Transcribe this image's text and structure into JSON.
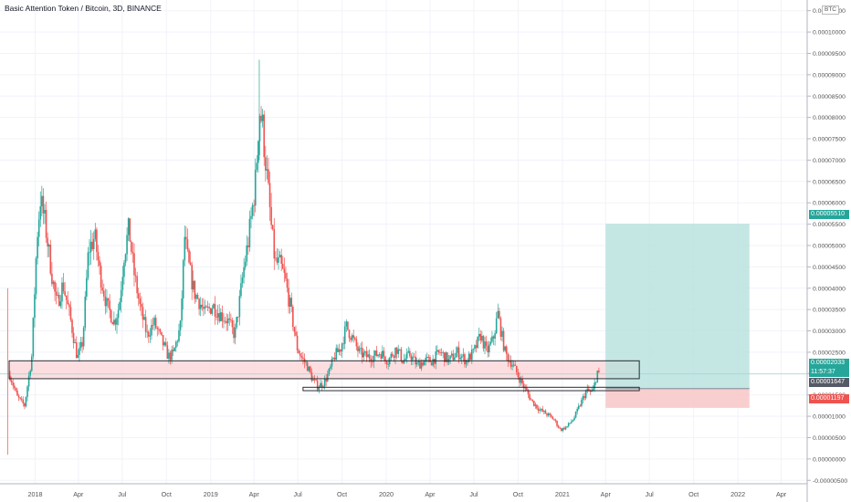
{
  "header": {
    "title": "Basic Attention Token / Bitcoin, 3D, BINANCE"
  },
  "price_axis": {
    "currency": "BTC"
  },
  "badges": {
    "target": "0.00005510",
    "current": "0.00002033",
    "countdown": "11:57:37",
    "entry": "0.00001647",
    "stop": "0.00001197"
  },
  "colors": {
    "up": "#26a69a",
    "down": "#ef5350",
    "target_zone": "#b2dfdb",
    "stop_zone": "#f8c5c5",
    "support_zone": "#fbd6d8"
  },
  "chart_data": {
    "type": "candlestick",
    "title": "Basic Attention Token / Bitcoin, 3D, BINANCE",
    "x_ticks": [
      "2018",
      "Apr",
      "Jul",
      "Oct",
      "2019",
      "Apr",
      "Jul",
      "Oct",
      "2020",
      "Apr",
      "Jul",
      "Oct",
      "2021",
      "Apr",
      "Jul",
      "Oct",
      "2022",
      "Apr"
    ],
    "y_ticks": [
      "-0.00000500",
      "0.00000000",
      "0.00000500",
      "0.00001000",
      "0.00001500",
      "0.00002000",
      "0.00002500",
      "0.00003000",
      "0.00003500",
      "0.00004000",
      "0.00004500",
      "0.00005000",
      "0.00005500",
      "0.00006000",
      "0.00006500",
      "0.00007000",
      "0.00007500",
      "0.00008000",
      "0.00008500",
      "0.00009000",
      "0.00009500",
      "0.00010000",
      "0.00010500"
    ],
    "ylim": [
      -5.8e-06,
      0.0001075
    ],
    "date_range": [
      "2017-10-20",
      "2022-05-25"
    ],
    "price_path": [
      [
        "2017-11-10",
        1.95e-05
      ],
      [
        "2017-11-25",
        1.45e-05
      ],
      [
        "2017-12-10",
        1.25e-05
      ],
      [
        "2017-12-25",
        2.4e-05
      ],
      [
        "2018-01-05",
        5.2e-05
      ],
      [
        "2018-01-12",
        6.1e-05
      ],
      [
        "2018-01-22",
        5.5e-05
      ],
      [
        "2018-02-05",
        4.3e-05
      ],
      [
        "2018-02-15",
        3.6e-05
      ],
      [
        "2018-02-28",
        4.1e-05
      ],
      [
        "2018-03-15",
        3.3e-05
      ],
      [
        "2018-03-30",
        2.35e-05
      ],
      [
        "2018-04-10",
        2.75e-05
      ],
      [
        "2018-04-22",
        4.9e-05
      ],
      [
        "2018-05-05",
        5.2e-05
      ],
      [
        "2018-05-15",
        4.4e-05
      ],
      [
        "2018-05-30",
        3.6e-05
      ],
      [
        "2018-06-15",
        3.2e-05
      ],
      [
        "2018-06-25",
        3.6e-05
      ],
      [
        "2018-07-05",
        4.8e-05
      ],
      [
        "2018-07-15",
        5.4e-05
      ],
      [
        "2018-07-25",
        4.4e-05
      ],
      [
        "2018-08-08",
        3.5e-05
      ],
      [
        "2018-08-22",
        2.9e-05
      ],
      [
        "2018-09-05",
        3.2e-05
      ],
      [
        "2018-09-20",
        2.8e-05
      ],
      [
        "2018-10-05",
        2.4e-05
      ],
      [
        "2018-10-15",
        2.45e-05
      ],
      [
        "2018-10-30",
        3.1e-05
      ],
      [
        "2018-11-08",
        5.2e-05
      ],
      [
        "2018-11-15",
        4.6e-05
      ],
      [
        "2018-11-28",
        3.9e-05
      ],
      [
        "2018-12-08",
        3.7e-05
      ],
      [
        "2018-12-20",
        3.4e-05
      ],
      [
        "2019-01-05",
        3.6e-05
      ],
      [
        "2019-01-20",
        3.4e-05
      ],
      [
        "2019-02-05",
        3.25e-05
      ],
      [
        "2019-02-20",
        2.9e-05
      ],
      [
        "2019-03-01",
        3.6e-05
      ],
      [
        "2019-03-10",
        4.4e-05
      ],
      [
        "2019-03-20",
        5.1e-05
      ],
      [
        "2019-03-28",
        5.8e-05
      ],
      [
        "2019-04-05",
        6.6e-05
      ],
      [
        "2019-04-12",
        8.2e-05
      ],
      [
        "2019-04-18",
        7.9e-05
      ],
      [
        "2019-04-28",
        6.6e-05
      ],
      [
        "2019-05-08",
        5.3e-05
      ],
      [
        "2019-05-15",
        4.6e-05
      ],
      [
        "2019-05-25",
        4.55e-05
      ],
      [
        "2019-06-05",
        4.2e-05
      ],
      [
        "2019-06-18",
        3.4e-05
      ],
      [
        "2019-06-30",
        2.6e-05
      ],
      [
        "2019-07-10",
        2.35e-05
      ],
      [
        "2019-07-20",
        2.2e-05
      ],
      [
        "2019-08-01",
        1.85e-05
      ],
      [
        "2019-08-12",
        1.7e-05
      ],
      [
        "2019-08-25",
        1.8e-05
      ],
      [
        "2019-09-05",
        2.05e-05
      ],
      [
        "2019-09-15",
        2.4e-05
      ],
      [
        "2019-09-28",
        2.6e-05
      ],
      [
        "2019-10-10",
        3.1e-05
      ],
      [
        "2019-10-22",
        2.85e-05
      ],
      [
        "2019-11-05",
        2.5e-05
      ],
      [
        "2019-11-20",
        2.4e-05
      ],
      [
        "2019-12-05",
        2.4e-05
      ],
      [
        "2019-12-20",
        2.5e-05
      ],
      [
        "2020-01-05",
        2.3e-05
      ],
      [
        "2020-01-22",
        2.6e-05
      ],
      [
        "2020-02-05",
        2.3e-05
      ],
      [
        "2020-02-20",
        2.45e-05
      ],
      [
        "2020-03-05",
        2.2e-05
      ],
      [
        "2020-03-20",
        2.3e-05
      ],
      [
        "2020-04-05",
        2.3e-05
      ],
      [
        "2020-04-22",
        2.5e-05
      ],
      [
        "2020-05-10",
        2.3e-05
      ],
      [
        "2020-05-28",
        2.5e-05
      ],
      [
        "2020-06-15",
        2.3e-05
      ],
      [
        "2020-07-01",
        2.5e-05
      ],
      [
        "2020-07-15",
        2.9e-05
      ],
      [
        "2020-07-28",
        2.5e-05
      ],
      [
        "2020-08-10",
        2.8e-05
      ],
      [
        "2020-08-20",
        3.4e-05
      ],
      [
        "2020-08-28",
        2.9e-05
      ],
      [
        "2020-09-05",
        2.45e-05
      ],
      [
        "2020-09-18",
        2.25e-05
      ],
      [
        "2020-10-01",
        1.95e-05
      ],
      [
        "2020-10-15",
        1.65e-05
      ],
      [
        "2020-10-30",
        1.35e-05
      ],
      [
        "2020-11-15",
        1.15e-05
      ],
      [
        "2020-11-30",
        1.05e-05
      ],
      [
        "2020-12-15",
        9.2e-06
      ],
      [
        "2020-12-28",
        6.8e-06
      ],
      [
        "2021-01-10",
        7.5e-06
      ],
      [
        "2021-01-25",
        9.5e-06
      ],
      [
        "2021-02-08",
        1.3e-05
      ],
      [
        "2021-02-20",
        1.6e-05
      ],
      [
        "2021-03-05",
        1.55e-05
      ],
      [
        "2021-03-15",
        2.05e-05
      ],
      [
        "2021-03-20",
        2.033e-05
      ]
    ],
    "annotations": [
      {
        "type": "rectangle",
        "label": "support zone",
        "x": [
          "2017-11-08",
          "2021-06-10"
        ],
        "y": [
          1.88e-05,
          2.3e-05
        ]
      },
      {
        "type": "rectangle",
        "label": "support line",
        "x": [
          "2019-07-12",
          "2021-06-10"
        ],
        "y": [
          1.6e-05,
          1.68e-05
        ]
      },
      {
        "type": "long position",
        "entry": 1.647e-05,
        "target": 5.51e-05,
        "stop": 1.197e-05,
        "x": [
          "2021-04-01",
          "2022-01-25"
        ]
      }
    ],
    "horizontal_line": 1.99e-05
  }
}
